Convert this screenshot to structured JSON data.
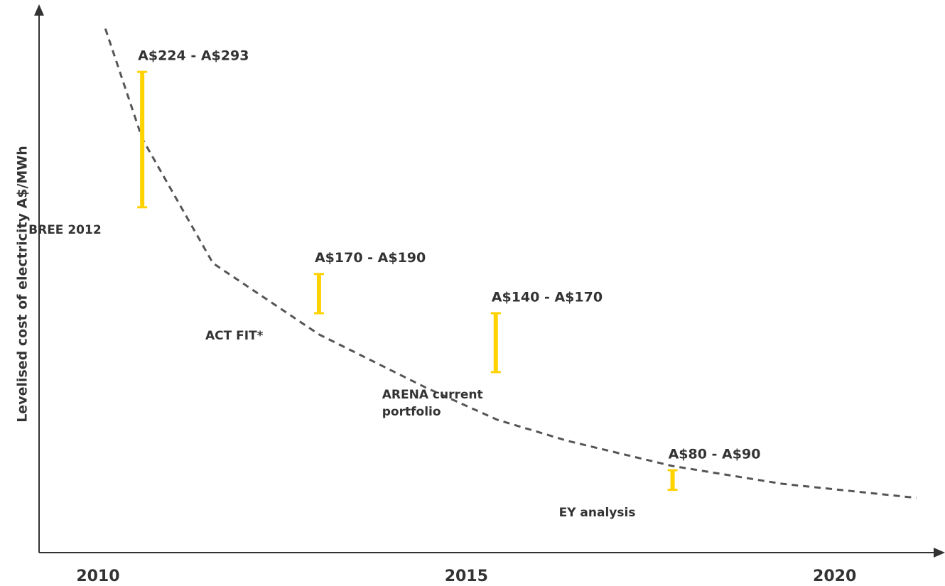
{
  "chart_data": {
    "type": "range",
    "y_label": "Levelised cost of electricity A$/MWh",
    "categories": [
      "BREE 2012",
      "ACT FIT*",
      "ARENA current portfolio",
      "EY analysis"
    ],
    "x": [
      2010.6,
      2013.0,
      2015.4,
      2017.8
    ],
    "low": [
      224,
      170,
      140,
      80
    ],
    "high": [
      293,
      190,
      170,
      90
    ],
    "value_labels": [
      "A$224 - A$293",
      "A$170 - A$190",
      "A$140 - A$170",
      "A$80 - A$90"
    ],
    "color": "#ffd200",
    "trend": {
      "x": [
        2010.1,
        2010.6,
        2011.56,
        2013.0,
        2014.45,
        2015.42,
        2016.38,
        2017.79,
        2019.28,
        2021.11
      ],
      "y": [
        315,
        259,
        195.5,
        159.2,
        132.1,
        115.7,
        104.9,
        92.2,
        83.1,
        75.9
      ],
      "color": "#555555"
    },
    "xlim": [
      2009.2,
      2021.45
    ],
    "xticks": [
      2010,
      2015,
      2020
    ],
    "ylim": [
      48,
      326
    ]
  }
}
